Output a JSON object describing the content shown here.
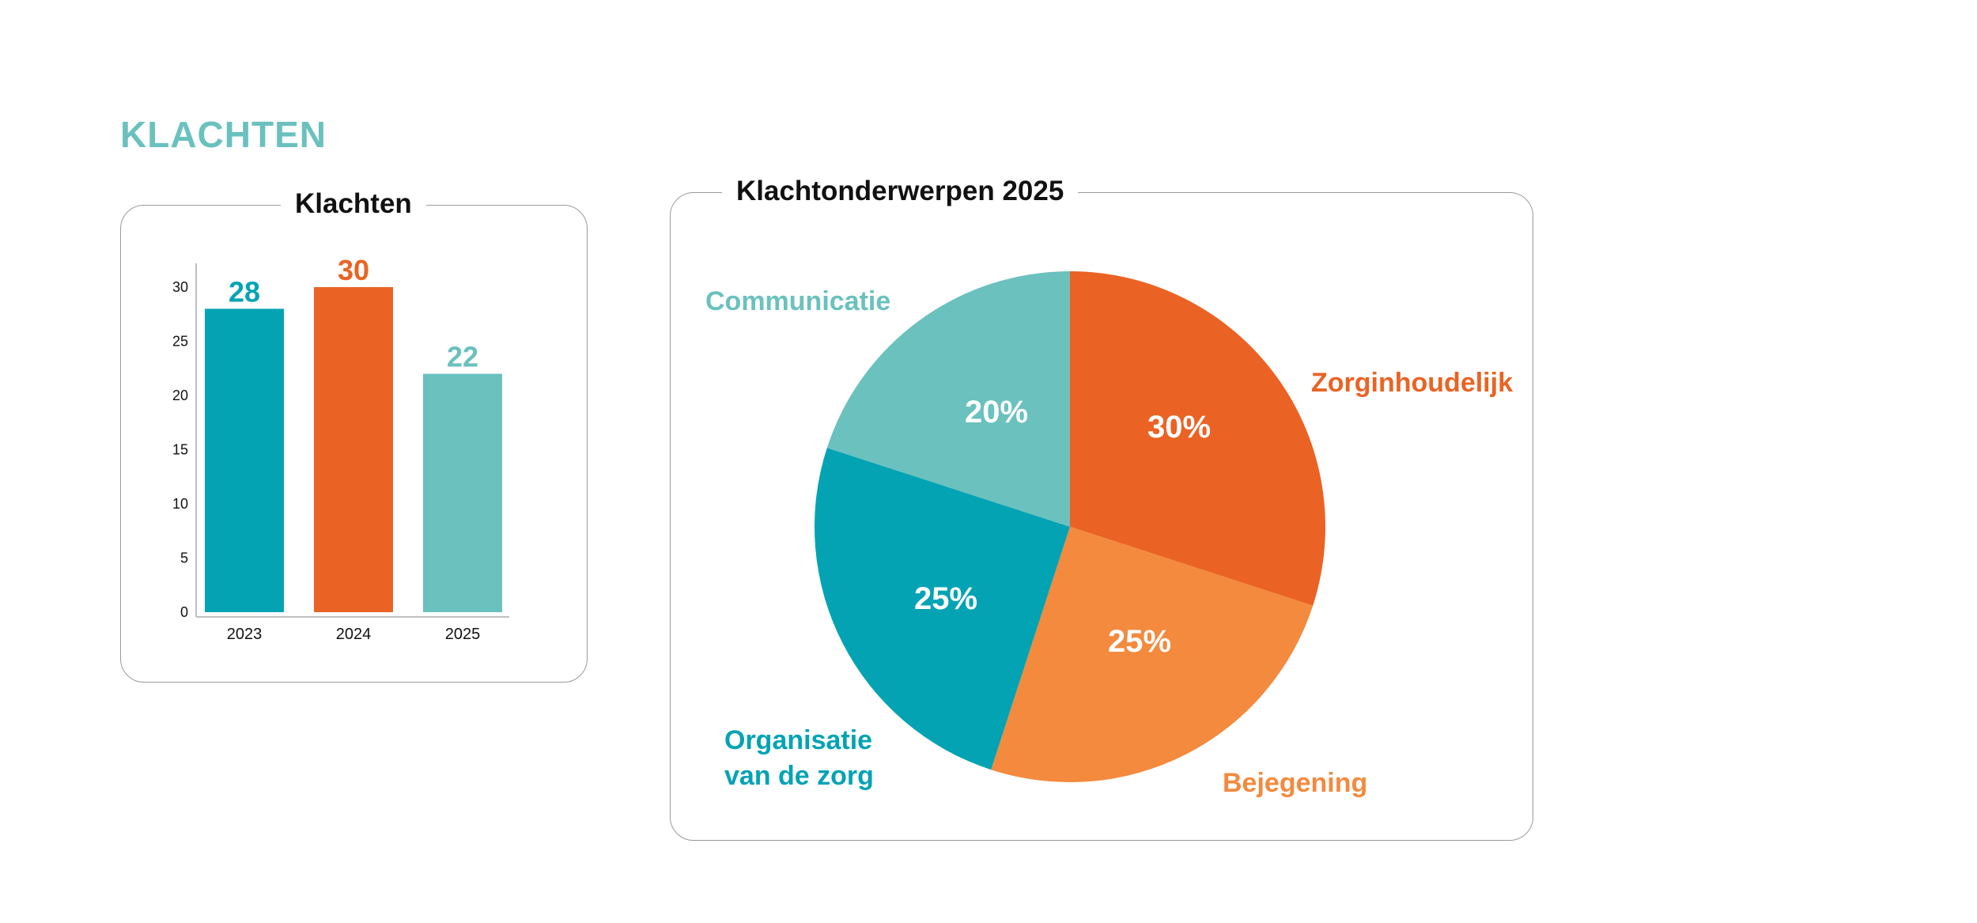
{
  "heading": "KLACHTEN",
  "colors": {
    "teal_dark": "#03a3b4",
    "teal_light": "#6ac1be",
    "orange_dark": "#ea6324",
    "orange_light": "#f38a3e",
    "title_text": "#111111"
  },
  "chart_data": [
    {
      "type": "bar",
      "title": "Klachten",
      "categories": [
        "2023",
        "2024",
        "2025"
      ],
      "values": [
        28,
        30,
        22
      ],
      "value_labels": [
        "28",
        "30",
        "22"
      ],
      "bar_colors": [
        "#03a3b4",
        "#ea6324",
        "#6ac1be"
      ],
      "ylim": [
        0,
        30
      ],
      "yticks": [
        "0",
        "5",
        "10",
        "15",
        "20",
        "25",
        "30"
      ],
      "xlabel": "",
      "ylabel": "",
      "grid": false
    },
    {
      "type": "pie",
      "title": "Klachtonderwerpen 2025",
      "slices": [
        {
          "label": "Zorginhoudelijk",
          "value": 30,
          "pct_label": "30%",
          "color": "#ea6324"
        },
        {
          "label": "Bejegening",
          "value": 25,
          "pct_label": "25%",
          "color": "#f38a3e"
        },
        {
          "label": "Organisatie van de zorg",
          "label_lines": [
            "Organisatie",
            "van de zorg"
          ],
          "value": 25,
          "pct_label": "25%",
          "color": "#03a3b4"
        },
        {
          "label": "Communicatie",
          "value": 20,
          "pct_label": "20%",
          "color": "#6ac1be"
        }
      ]
    }
  ]
}
